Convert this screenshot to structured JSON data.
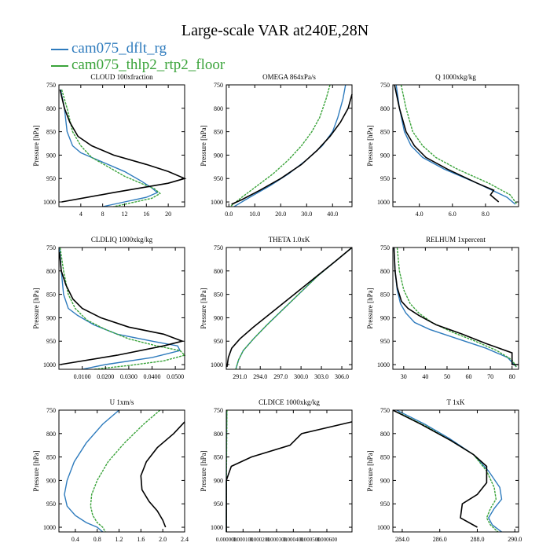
{
  "title": "Large-scale VAR at240E,28N",
  "legend": [
    {
      "label": "cam075_dflt_rg",
      "color": "#2e7bbd"
    },
    {
      "label": "cam075_thlp2_rtp2_floor",
      "color": "#3aa33a"
    },
    {
      "label": "",
      "color": "#000000"
    }
  ],
  "y_axis_label": "Pressure [hPa]",
  "y_ticks": [
    750,
    800,
    850,
    900,
    950,
    1000
  ],
  "chart_data": [
    {
      "type": "line",
      "title": "CLOUD  100xfraction",
      "xlim": [
        0,
        23
      ],
      "ylim": [
        750,
        1010
      ],
      "xticks": [
        4,
        8,
        12,
        16,
        20
      ],
      "xtick_labels": [
        "4",
        "8",
        "12",
        "16",
        "20"
      ],
      "series": [
        {
          "color": "#2e7bbd",
          "x": [
            0.3,
            1,
            1.5,
            2.5,
            4,
            8,
            12,
            15,
            17,
            18,
            16,
            12,
            8
          ],
          "y": [
            760,
            800,
            850,
            880,
            895,
            915,
            935,
            955,
            970,
            980,
            990,
            1000,
            1010
          ]
        },
        {
          "color": "#3aa33a",
          "x": [
            0.5,
            1.5,
            2.5,
            4,
            6,
            9,
            12,
            15,
            17.5,
            18.5,
            17,
            14,
            10
          ],
          "y": [
            760,
            800,
            850,
            880,
            905,
            925,
            945,
            960,
            972,
            982,
            992,
            1000,
            1010
          ]
        },
        {
          "color": "#000000",
          "x": [
            0.2,
            1,
            2,
            3.5,
            6,
            10,
            16,
            20,
            23,
            20,
            10,
            0.5
          ],
          "y": [
            760,
            800,
            830,
            860,
            880,
            900,
            920,
            935,
            950,
            960,
            980,
            1000
          ]
        }
      ]
    },
    {
      "type": "line",
      "title": "OMEGA  864xPa/s",
      "xlim": [
        -1,
        47.5
      ],
      "ylim": [
        750,
        1010
      ],
      "xticks": [
        0,
        10,
        20,
        30,
        40
      ],
      "xtick_labels": [
        "0.0",
        "10.0",
        "20.0",
        "30.0",
        "40.0"
      ],
      "series": [
        {
          "color": "#2e7bbd",
          "x": [
            45,
            44,
            42,
            40,
            36,
            30,
            23,
            16,
            8,
            2
          ],
          "y": [
            750,
            780,
            820,
            850,
            880,
            910,
            940,
            965,
            990,
            1010
          ]
        },
        {
          "color": "#3aa33a",
          "x": [
            39,
            37.5,
            35,
            32,
            28,
            23,
            17,
            11,
            5,
            0.5
          ],
          "y": [
            750,
            780,
            820,
            850,
            880,
            910,
            940,
            965,
            990,
            1010
          ]
        },
        {
          "color": "#000000",
          "x": [
            47.5,
            46,
            43,
            39,
            34,
            28,
            20,
            12,
            5,
            1
          ],
          "y": [
            770,
            800,
            830,
            860,
            890,
            920,
            950,
            975,
            995,
            1005
          ]
        }
      ]
    },
    {
      "type": "line",
      "title": "Q  1000xkg/kg",
      "xlim": [
        2.4,
        10
      ],
      "ylim": [
        750,
        1010
      ],
      "xticks": [
        4,
        6,
        8
      ],
      "xtick_labels": [
        "4.0",
        "6.0",
        "8.0"
      ],
      "series": [
        {
          "color": "#2e7bbd",
          "x": [
            2.6,
            2.8,
            3.1,
            3.5,
            4.2,
            5.5,
            7.5,
            9.3,
            9.8
          ],
          "y": [
            750,
            800,
            850,
            880,
            905,
            930,
            960,
            990,
            1005
          ]
        },
        {
          "color": "#3aa33a",
          "x": [
            2.9,
            3.2,
            3.6,
            4.2,
            5,
            6.3,
            8.2,
            9.5,
            9.9
          ],
          "y": [
            750,
            800,
            850,
            880,
            905,
            930,
            960,
            985,
            1005
          ]
        },
        {
          "color": "#000000",
          "x": [
            2.5,
            2.8,
            3.2,
            3.7,
            4.4,
            5.7,
            7.5,
            8.5,
            8.3,
            8.8
          ],
          "y": [
            750,
            800,
            850,
            880,
            905,
            930,
            960,
            975,
            985,
            1000
          ]
        }
      ]
    },
    {
      "type": "line",
      "title": "CLDLIQ  1000xkg/kg",
      "xlim": [
        0,
        0.054
      ],
      "ylim": [
        750,
        1010
      ],
      "xticks": [
        0.01,
        0.02,
        0.03,
        0.04,
        0.05
      ],
      "xtick_labels": [
        "0.0100",
        "0.0200",
        "0.0300",
        "0.0400",
        "0.0500"
      ],
      "series": [
        {
          "color": "#2e7bbd",
          "x": [
            0.0003,
            0.001,
            0.002,
            0.004,
            0.008,
            0.015,
            0.025,
            0.04,
            0.051,
            0.052,
            0.04,
            0.02,
            0.01
          ],
          "y": [
            750,
            800,
            850,
            880,
            895,
            915,
            935,
            950,
            960,
            970,
            985,
            1000,
            1010
          ]
        },
        {
          "color": "#3aa33a",
          "x": [
            0.0005,
            0.002,
            0.004,
            0.007,
            0.012,
            0.02,
            0.03,
            0.042,
            0.052,
            0.054,
            0.045,
            0.03,
            0.015
          ],
          "y": [
            750,
            800,
            850,
            880,
            905,
            925,
            945,
            960,
            970,
            980,
            992,
            1002,
            1010
          ]
        },
        {
          "color": "#000000",
          "x": [
            0.0002,
            0.001,
            0.003,
            0.006,
            0.01,
            0.018,
            0.03,
            0.045,
            0.053,
            0.045,
            0.025,
            0.0005
          ],
          "y": [
            760,
            800,
            830,
            860,
            880,
            900,
            920,
            935,
            950,
            960,
            980,
            1000
          ]
        }
      ]
    },
    {
      "type": "line",
      "title": "THETA  1.0xK",
      "xlim": [
        289,
        307.5
      ],
      "ylim": [
        750,
        1010
      ],
      "xticks": [
        291,
        294,
        297,
        300,
        303,
        306
      ],
      "xtick_labels": [
        "291.0",
        "294.0",
        "297.0",
        "300.0",
        "303.0",
        "306.0"
      ],
      "series": [
        {
          "color": "#2e7bbd",
          "x": [
            307.5,
            305,
            302.5,
            300,
            297.5,
            295,
            293,
            291.5,
            290.8,
            290.4
          ],
          "y": [
            750,
            780,
            810,
            845,
            880,
            915,
            945,
            970,
            990,
            1010
          ]
        },
        {
          "color": "#3aa33a",
          "x": [
            307.5,
            305,
            302.5,
            300,
            297.5,
            295,
            293,
            291.5,
            290.8,
            290.4
          ],
          "y": [
            750,
            780,
            810,
            845,
            880,
            915,
            945,
            970,
            990,
            1010
          ]
        },
        {
          "color": "#000000",
          "x": [
            307.5,
            305,
            302,
            299,
            296,
            293,
            291,
            289.8,
            289.3,
            289.1
          ],
          "y": [
            750,
            780,
            815,
            850,
            885,
            920,
            945,
            965,
            985,
            1005
          ]
        }
      ]
    },
    {
      "type": "line",
      "title": "RELHUM  1xpercent",
      "xlim": [
        25,
        83
      ],
      "ylim": [
        750,
        1010
      ],
      "xticks": [
        30,
        40,
        50,
        60,
        70,
        80
      ],
      "xtick_labels": [
        "30",
        "40",
        "50",
        "60",
        "70",
        "80"
      ],
      "series": [
        {
          "color": "#2e7bbd",
          "x": [
            25.5,
            26,
            27,
            28.5,
            31,
            35,
            42,
            55,
            68,
            78,
            82
          ],
          "y": [
            750,
            800,
            840,
            870,
            890,
            910,
            925,
            945,
            965,
            985,
            1005
          ]
        },
        {
          "color": "#3aa33a",
          "x": [
            27,
            28,
            30,
            33,
            37,
            43,
            52,
            63,
            73,
            80,
            82
          ],
          "y": [
            750,
            800,
            840,
            870,
            890,
            910,
            930,
            950,
            970,
            990,
            1005
          ]
        },
        {
          "color": "#000000",
          "x": [
            25.5,
            26,
            27,
            29,
            32,
            37,
            45,
            57,
            68,
            80,
            80,
            83
          ],
          "y": [
            750,
            800,
            835,
            865,
            880,
            895,
            915,
            935,
            955,
            975,
            1000,
            1000
          ]
        }
      ]
    },
    {
      "type": "line",
      "title": "U  1xm/s",
      "xlim": [
        0.1,
        2.4
      ],
      "ylim": [
        750,
        1010
      ],
      "xticks": [
        0.4,
        0.8,
        1.2,
        1.6,
        2.0,
        2.4
      ],
      "xtick_labels": [
        "0.4",
        "0.8",
        "1.2",
        "1.6",
        "2.0",
        "2.4"
      ],
      "series": [
        {
          "color": "#2e7bbd",
          "x": [
            1.2,
            0.9,
            0.6,
            0.38,
            0.25,
            0.2,
            0.25,
            0.4,
            0.6,
            0.8,
            0.9
          ],
          "y": [
            750,
            780,
            820,
            860,
            900,
            930,
            955,
            975,
            990,
            1000,
            1010
          ]
        },
        {
          "color": "#3aa33a",
          "x": [
            1.95,
            1.65,
            1.3,
            1.0,
            0.8,
            0.7,
            0.68,
            0.72,
            0.8,
            0.9,
            0.95
          ],
          "y": [
            750,
            780,
            820,
            860,
            900,
            930,
            955,
            975,
            990,
            1000,
            1010
          ]
        },
        {
          "color": "#000000",
          "x": [
            2.4,
            2.2,
            1.9,
            1.7,
            1.6,
            1.62,
            1.75,
            1.9,
            2.0,
            2.05
          ],
          "y": [
            775,
            800,
            830,
            860,
            890,
            920,
            945,
            965,
            985,
            1000
          ]
        }
      ]
    },
    {
      "type": "line",
      "title": "CLDICE  1000xkg/kg",
      "xlim": [
        0,
        0.00075
      ],
      "ylim": [
        750,
        1010
      ],
      "xticks": [
        0,
        0.0001,
        0.0002,
        0.0003,
        0.0004,
        0.0005,
        0.0006
      ],
      "xtick_labels": [
        "0.000000",
        "0.000100",
        "0.000200",
        "0.000300",
        "0.000400",
        "0.000500",
        "0.000600"
      ],
      "series": [
        {
          "color": "#2e7bbd",
          "x": [
            3e-06,
            2e-06,
            1e-06,
            5e-07,
            5e-07
          ],
          "y": [
            750,
            800,
            850,
            900,
            1010
          ]
        },
        {
          "color": "#3aa33a",
          "x": [
            4e-06,
            3e-06,
            2e-06,
            1e-06,
            1e-06
          ],
          "y": [
            750,
            800,
            850,
            900,
            1010
          ]
        },
        {
          "color": "#000000",
          "x": [
            0.00075,
            0.00045,
            0.00038,
            0.00015,
            3e-05,
            1e-05,
            5e-07,
            5e-07
          ],
          "y": [
            775,
            800,
            825,
            850,
            870,
            890,
            900,
            1010
          ]
        }
      ]
    },
    {
      "type": "line",
      "title": "T  1xK",
      "xlim": [
        283.5,
        290.2
      ],
      "ylim": [
        750,
        1010
      ],
      "xticks": [
        284,
        286,
        288,
        290
      ],
      "xtick_labels": [
        "284.0",
        "286.0",
        "288.0",
        "290.0"
      ],
      "series": [
        {
          "color": "#2e7bbd",
          "x": [
            283.7,
            285.2,
            286.5,
            287.8,
            288.6,
            289.2,
            289.3,
            288.9,
            288.6,
            288.8,
            289.3
          ],
          "y": [
            750,
            780,
            810,
            845,
            880,
            915,
            940,
            960,
            980,
            995,
            1010
          ]
        },
        {
          "color": "#3aa33a",
          "x": [
            283.8,
            285.3,
            286.6,
            287.8,
            288.5,
            288.9,
            289.0,
            288.7,
            288.5,
            288.7,
            289.1
          ],
          "y": [
            755,
            785,
            815,
            845,
            880,
            915,
            940,
            960,
            980,
            995,
            1010
          ]
        },
        {
          "color": "#000000",
          "x": [
            283.5,
            285.0,
            286.6,
            287.8,
            288.5,
            288.5,
            288.0,
            287.2,
            287.1,
            288.0
          ],
          "y": [
            750,
            780,
            815,
            845,
            870,
            905,
            930,
            950,
            980,
            1000
          ]
        }
      ]
    }
  ]
}
